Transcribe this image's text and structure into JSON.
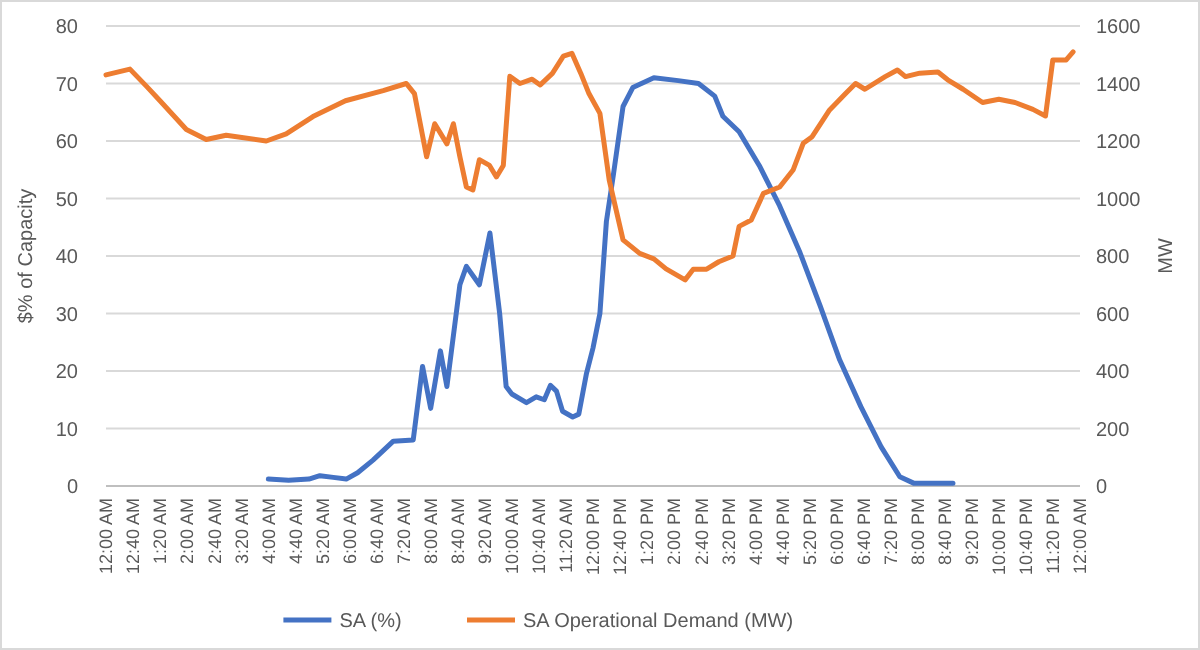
{
  "chart_data": {
    "type": "line",
    "ylabel": "$% of Capacity",
    "y2label": "MW",
    "xlim": [
      0,
      24
    ],
    "ylim": [
      0,
      80
    ],
    "yticks": [
      0,
      10,
      20,
      30,
      40,
      50,
      60,
      70,
      80
    ],
    "y2lim": [
      0,
      1600
    ],
    "y2ticks": [
      0,
      200,
      400,
      600,
      800,
      1000,
      1200,
      1400,
      1600
    ],
    "xticks": [
      {
        "value": 0,
        "label": "12:00 AM"
      },
      {
        "value": 0.6667,
        "label": "12:40 AM"
      },
      {
        "value": 1.3333,
        "label": "1:20 AM"
      },
      {
        "value": 2,
        "label": "2:00 AM"
      },
      {
        "value": 2.6667,
        "label": "2:40 AM"
      },
      {
        "value": 3.3333,
        "label": "3:20 AM"
      },
      {
        "value": 4,
        "label": "4:00 AM"
      },
      {
        "value": 4.6667,
        "label": "4:40 AM"
      },
      {
        "value": 5.3333,
        "label": "5:20 AM"
      },
      {
        "value": 6,
        "label": "6:00 AM"
      },
      {
        "value": 6.6667,
        "label": "6:40 AM"
      },
      {
        "value": 7.3333,
        "label": "7:20 AM"
      },
      {
        "value": 8,
        "label": "8:00 AM"
      },
      {
        "value": 8.6667,
        "label": "8:40 AM"
      },
      {
        "value": 9.3333,
        "label": "9:20 AM"
      },
      {
        "value": 10,
        "label": "10:00 AM"
      },
      {
        "value": 10.6667,
        "label": "10:40 AM"
      },
      {
        "value": 11.3333,
        "label": "11:20 AM"
      },
      {
        "value": 12,
        "label": "12:00 PM"
      },
      {
        "value": 12.6667,
        "label": "12:40 PM"
      },
      {
        "value": 13.3333,
        "label": "1:20 PM"
      },
      {
        "value": 14,
        "label": "2:00 PM"
      },
      {
        "value": 14.6667,
        "label": "2:40 PM"
      },
      {
        "value": 15.3333,
        "label": "3:20 PM"
      },
      {
        "value": 16,
        "label": "4:00 PM"
      },
      {
        "value": 16.6667,
        "label": "4:40 PM"
      },
      {
        "value": 17.3333,
        "label": "5:20 PM"
      },
      {
        "value": 18,
        "label": "6:00 PM"
      },
      {
        "value": 18.6667,
        "label": "6:40 PM"
      },
      {
        "value": 19.3333,
        "label": "7:20 PM"
      },
      {
        "value": 20,
        "label": "8:00 PM"
      },
      {
        "value": 20.6667,
        "label": "8:40 PM"
      },
      {
        "value": 21.3333,
        "label": "9:20 PM"
      },
      {
        "value": 22,
        "label": "10:00 PM"
      },
      {
        "value": 22.6667,
        "label": "10:40 PM"
      },
      {
        "value": 23.3333,
        "label": "11:20 PM"
      },
      {
        "value": 24,
        "label": "12:00 AM"
      }
    ],
    "grid": "y",
    "legend": "bottom",
    "marker": "none",
    "line_style": "solid",
    "series": [
      {
        "name": "SA (%)",
        "color": "#4472c4",
        "x": [
          4.0,
          4.5,
          5.0,
          5.27,
          5.6,
          5.92,
          6.2,
          6.58,
          7.08,
          7.57,
          7.8,
          8.0,
          8.24,
          8.4,
          8.72,
          8.88,
          9.2,
          9.46,
          9.7,
          9.86,
          10.0,
          10.36,
          10.6,
          10.8,
          10.95,
          11.1,
          11.25,
          11.5,
          11.65,
          11.84,
          12.0,
          12.17,
          12.33,
          12.5,
          12.74,
          12.98,
          13.5,
          14.1,
          14.6,
          15.0,
          15.2,
          15.6,
          16.1,
          16.6,
          17.1,
          17.6,
          18.08,
          18.6,
          19.1,
          19.56,
          19.9,
          20.4,
          20.87
        ],
        "values": [
          1.2,
          1.0,
          1.2,
          1.8,
          1.5,
          1.2,
          2.3,
          4.5,
          7.8,
          8,
          20.8,
          13.5,
          23.5,
          17.3,
          35,
          38.2,
          35,
          44,
          30,
          17.3,
          16,
          14.5,
          15.5,
          15,
          17.5,
          16.5,
          13,
          12,
          12.5,
          19.6,
          24,
          30,
          46,
          54,
          66,
          69.3,
          71,
          70.5,
          70,
          67.8,
          64.3,
          61.6,
          55.7,
          48.7,
          40.6,
          31.3,
          21.9,
          13.8,
          6.8,
          1.6,
          0.5,
          0.5,
          0.5
        ]
      },
      {
        "name": "SA Operational Demand (MW)",
        "color": "#ed7d31",
        "axis": "y2",
        "x": [
          0,
          0.59,
          1.0,
          1.33,
          1.98,
          2.47,
          2.96,
          3.95,
          4.44,
          5.1,
          5.9,
          6.83,
          7.4,
          7.6,
          7.9,
          8.1,
          8.4,
          8.56,
          8.72,
          8.88,
          9.04,
          9.2,
          9.45,
          9.62,
          9.79,
          9.95,
          10.2,
          10.5,
          10.7,
          11.0,
          11.27,
          11.48,
          11.7,
          11.9,
          12.17,
          12.4,
          12.74,
          13.15,
          13.5,
          13.8,
          14.27,
          14.47,
          14.8,
          15.1,
          15.45,
          15.6,
          15.9,
          16.2,
          16.6,
          16.93,
          17.18,
          17.4,
          17.83,
          18.23,
          18.47,
          18.7,
          19.2,
          19.5,
          19.7,
          20.05,
          20.5,
          20.74,
          21.12,
          21.6,
          22.0,
          22.4,
          22.84,
          23.15,
          23.33,
          23.66,
          23.83
        ],
        "values": [
          1430,
          1450,
          1390,
          1340,
          1240,
          1205,
          1220,
          1200,
          1225,
          1285,
          1340,
          1375,
          1400,
          1365,
          1145,
          1260,
          1190,
          1260,
          1145,
          1040,
          1030,
          1135,
          1115,
          1075,
          1115,
          1425,
          1400,
          1415,
          1395,
          1435,
          1495,
          1505,
          1435,
          1365,
          1296,
          1064,
          856,
          809,
          790,
          755,
          717,
          754,
          754,
          780,
          800,
          903,
          925,
          1018,
          1040,
          1099,
          1192,
          1215,
          1308,
          1366,
          1400,
          1380,
          1424,
          1447,
          1424,
          1436,
          1440,
          1413,
          1380,
          1334,
          1345,
          1334,
          1310,
          1287,
          1482,
          1482,
          1510
        ]
      }
    ]
  }
}
